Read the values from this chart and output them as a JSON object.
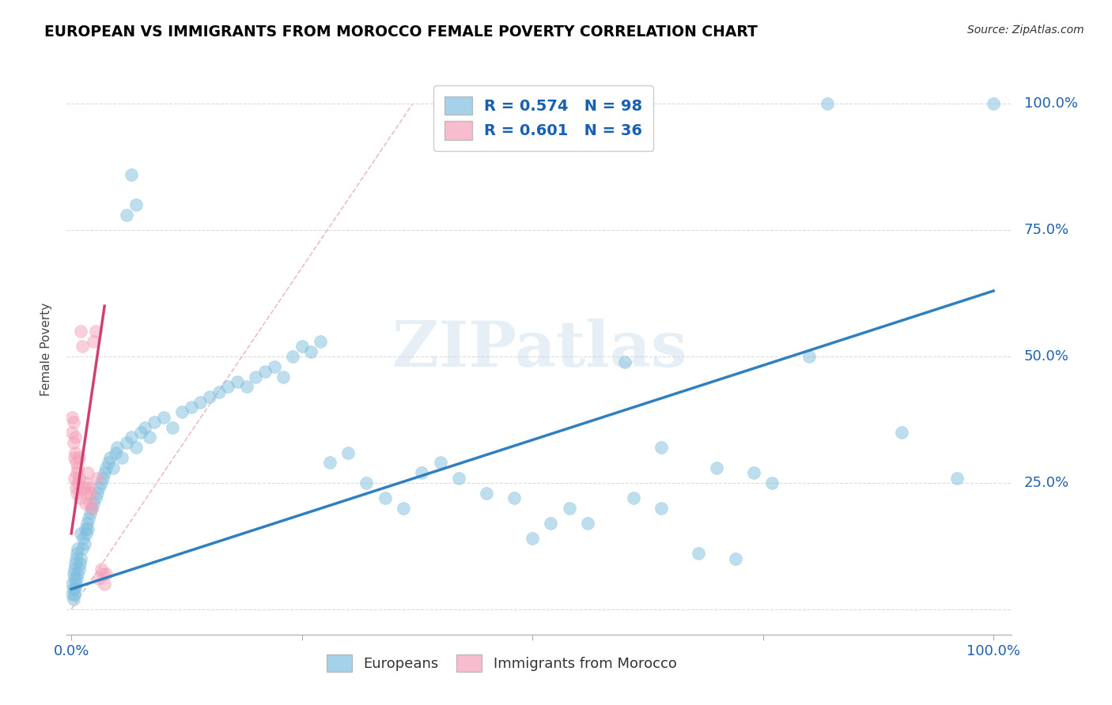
{
  "title": "EUROPEAN VS IMMIGRANTS FROM MOROCCO FEMALE POVERTY CORRELATION CHART",
  "source": "Source: ZipAtlas.com",
  "ylabel": "Female Poverty",
  "watermark": "ZIPatlas",
  "blue_R": "R = 0.574",
  "blue_N": "N = 98",
  "pink_R": "R = 0.601",
  "pink_N": "N = 36",
  "blue_color": "#7fbfdf",
  "pink_color": "#f4a0b8",
  "blue_line_color": "#3080c0",
  "pink_line_color": "#d04070",
  "background_color": "#ffffff",
  "grid_color": "#cccccc",
  "blue_scatter": [
    [
      0.001,
      0.03
    ],
    [
      0.001,
      0.05
    ],
    [
      0.002,
      0.02
    ],
    [
      0.002,
      0.04
    ],
    [
      0.002,
      0.07
    ],
    [
      0.003,
      0.03
    ],
    [
      0.003,
      0.06
    ],
    [
      0.003,
      0.08
    ],
    [
      0.004,
      0.04
    ],
    [
      0.004,
      0.09
    ],
    [
      0.005,
      0.05
    ],
    [
      0.005,
      0.1
    ],
    [
      0.006,
      0.06
    ],
    [
      0.006,
      0.11
    ],
    [
      0.007,
      0.07
    ],
    [
      0.007,
      0.12
    ],
    [
      0.008,
      0.08
    ],
    [
      0.009,
      0.09
    ],
    [
      0.01,
      0.1
    ],
    [
      0.01,
      0.15
    ],
    [
      0.012,
      0.12
    ],
    [
      0.013,
      0.14
    ],
    [
      0.014,
      0.13
    ],
    [
      0.015,
      0.16
    ],
    [
      0.016,
      0.15
    ],
    [
      0.017,
      0.17
    ],
    [
      0.018,
      0.16
    ],
    [
      0.019,
      0.18
    ],
    [
      0.02,
      0.19
    ],
    [
      0.022,
      0.2
    ],
    [
      0.024,
      0.21
    ],
    [
      0.026,
      0.22
    ],
    [
      0.028,
      0.23
    ],
    [
      0.03,
      0.24
    ],
    [
      0.032,
      0.25
    ],
    [
      0.034,
      0.26
    ],
    [
      0.036,
      0.27
    ],
    [
      0.038,
      0.28
    ],
    [
      0.04,
      0.29
    ],
    [
      0.042,
      0.3
    ],
    [
      0.045,
      0.28
    ],
    [
      0.048,
      0.31
    ],
    [
      0.05,
      0.32
    ],
    [
      0.055,
      0.3
    ],
    [
      0.06,
      0.33
    ],
    [
      0.065,
      0.34
    ],
    [
      0.07,
      0.32
    ],
    [
      0.075,
      0.35
    ],
    [
      0.08,
      0.36
    ],
    [
      0.085,
      0.34
    ],
    [
      0.09,
      0.37
    ],
    [
      0.1,
      0.38
    ],
    [
      0.11,
      0.36
    ],
    [
      0.12,
      0.39
    ],
    [
      0.13,
      0.4
    ],
    [
      0.14,
      0.41
    ],
    [
      0.15,
      0.42
    ],
    [
      0.16,
      0.43
    ],
    [
      0.17,
      0.44
    ],
    [
      0.18,
      0.45
    ],
    [
      0.19,
      0.44
    ],
    [
      0.2,
      0.46
    ],
    [
      0.21,
      0.47
    ],
    [
      0.22,
      0.48
    ],
    [
      0.23,
      0.46
    ],
    [
      0.24,
      0.5
    ],
    [
      0.25,
      0.52
    ],
    [
      0.26,
      0.51
    ],
    [
      0.27,
      0.53
    ],
    [
      0.06,
      0.78
    ],
    [
      0.065,
      0.86
    ],
    [
      0.07,
      0.8
    ],
    [
      0.28,
      0.29
    ],
    [
      0.3,
      0.31
    ],
    [
      0.32,
      0.25
    ],
    [
      0.34,
      0.22
    ],
    [
      0.36,
      0.2
    ],
    [
      0.38,
      0.27
    ],
    [
      0.4,
      0.29
    ],
    [
      0.42,
      0.26
    ],
    [
      0.45,
      0.23
    ],
    [
      0.48,
      0.22
    ],
    [
      0.5,
      0.14
    ],
    [
      0.52,
      0.17
    ],
    [
      0.54,
      0.2
    ],
    [
      0.56,
      0.17
    ],
    [
      0.6,
      0.49
    ],
    [
      0.61,
      0.22
    ],
    [
      0.64,
      0.2
    ],
    [
      0.64,
      0.32
    ],
    [
      0.68,
      0.11
    ],
    [
      0.7,
      0.28
    ],
    [
      0.72,
      0.1
    ],
    [
      0.74,
      0.27
    ],
    [
      0.76,
      0.25
    ],
    [
      0.8,
      0.5
    ],
    [
      0.82,
      1.0
    ],
    [
      0.9,
      0.35
    ],
    [
      0.96,
      0.26
    ],
    [
      1.0,
      1.0
    ]
  ],
  "pink_scatter": [
    [
      0.001,
      0.35
    ],
    [
      0.001,
      0.38
    ],
    [
      0.002,
      0.37
    ],
    [
      0.002,
      0.33
    ],
    [
      0.003,
      0.3
    ],
    [
      0.003,
      0.26
    ],
    [
      0.004,
      0.34
    ],
    [
      0.004,
      0.31
    ],
    [
      0.005,
      0.29
    ],
    [
      0.005,
      0.24
    ],
    [
      0.006,
      0.27
    ],
    [
      0.006,
      0.23
    ],
    [
      0.007,
      0.28
    ],
    [
      0.007,
      0.25
    ],
    [
      0.008,
      0.3
    ],
    [
      0.008,
      0.26
    ],
    [
      0.009,
      0.22
    ],
    [
      0.01,
      0.55
    ],
    [
      0.012,
      0.52
    ],
    [
      0.014,
      0.24
    ],
    [
      0.015,
      0.21
    ],
    [
      0.016,
      0.25
    ],
    [
      0.017,
      0.23
    ],
    [
      0.018,
      0.27
    ],
    [
      0.019,
      0.24
    ],
    [
      0.02,
      0.21
    ],
    [
      0.021,
      0.23
    ],
    [
      0.022,
      0.2
    ],
    [
      0.024,
      0.53
    ],
    [
      0.026,
      0.55
    ],
    [
      0.028,
      0.26
    ],
    [
      0.03,
      0.06
    ],
    [
      0.032,
      0.08
    ],
    [
      0.034,
      0.07
    ],
    [
      0.036,
      0.05
    ],
    [
      0.038,
      0.07
    ]
  ],
  "blue_trendline_x": [
    0.0,
    1.0
  ],
  "blue_trendline_y": [
    0.04,
    0.63
  ],
  "pink_trendline_x": [
    0.0,
    0.036
  ],
  "pink_trendline_y": [
    0.15,
    0.6
  ],
  "diagonal_line_x": [
    0.0,
    0.37
  ],
  "diagonal_line_y": [
    0.0,
    1.0
  ],
  "xlim": [
    -0.005,
    1.02
  ],
  "ylim": [
    -0.05,
    1.08
  ],
  "xticks": [
    0.0,
    0.25,
    0.5,
    0.75,
    1.0
  ],
  "xticklabels": [
    "0.0%",
    "",
    "",
    "",
    "100.0%"
  ],
  "ytick_positions": [
    0.0,
    0.25,
    0.5,
    0.75,
    1.0
  ],
  "ytick_labels": [
    "",
    "25.0%",
    "50.0%",
    "75.0%",
    "100.0%"
  ]
}
